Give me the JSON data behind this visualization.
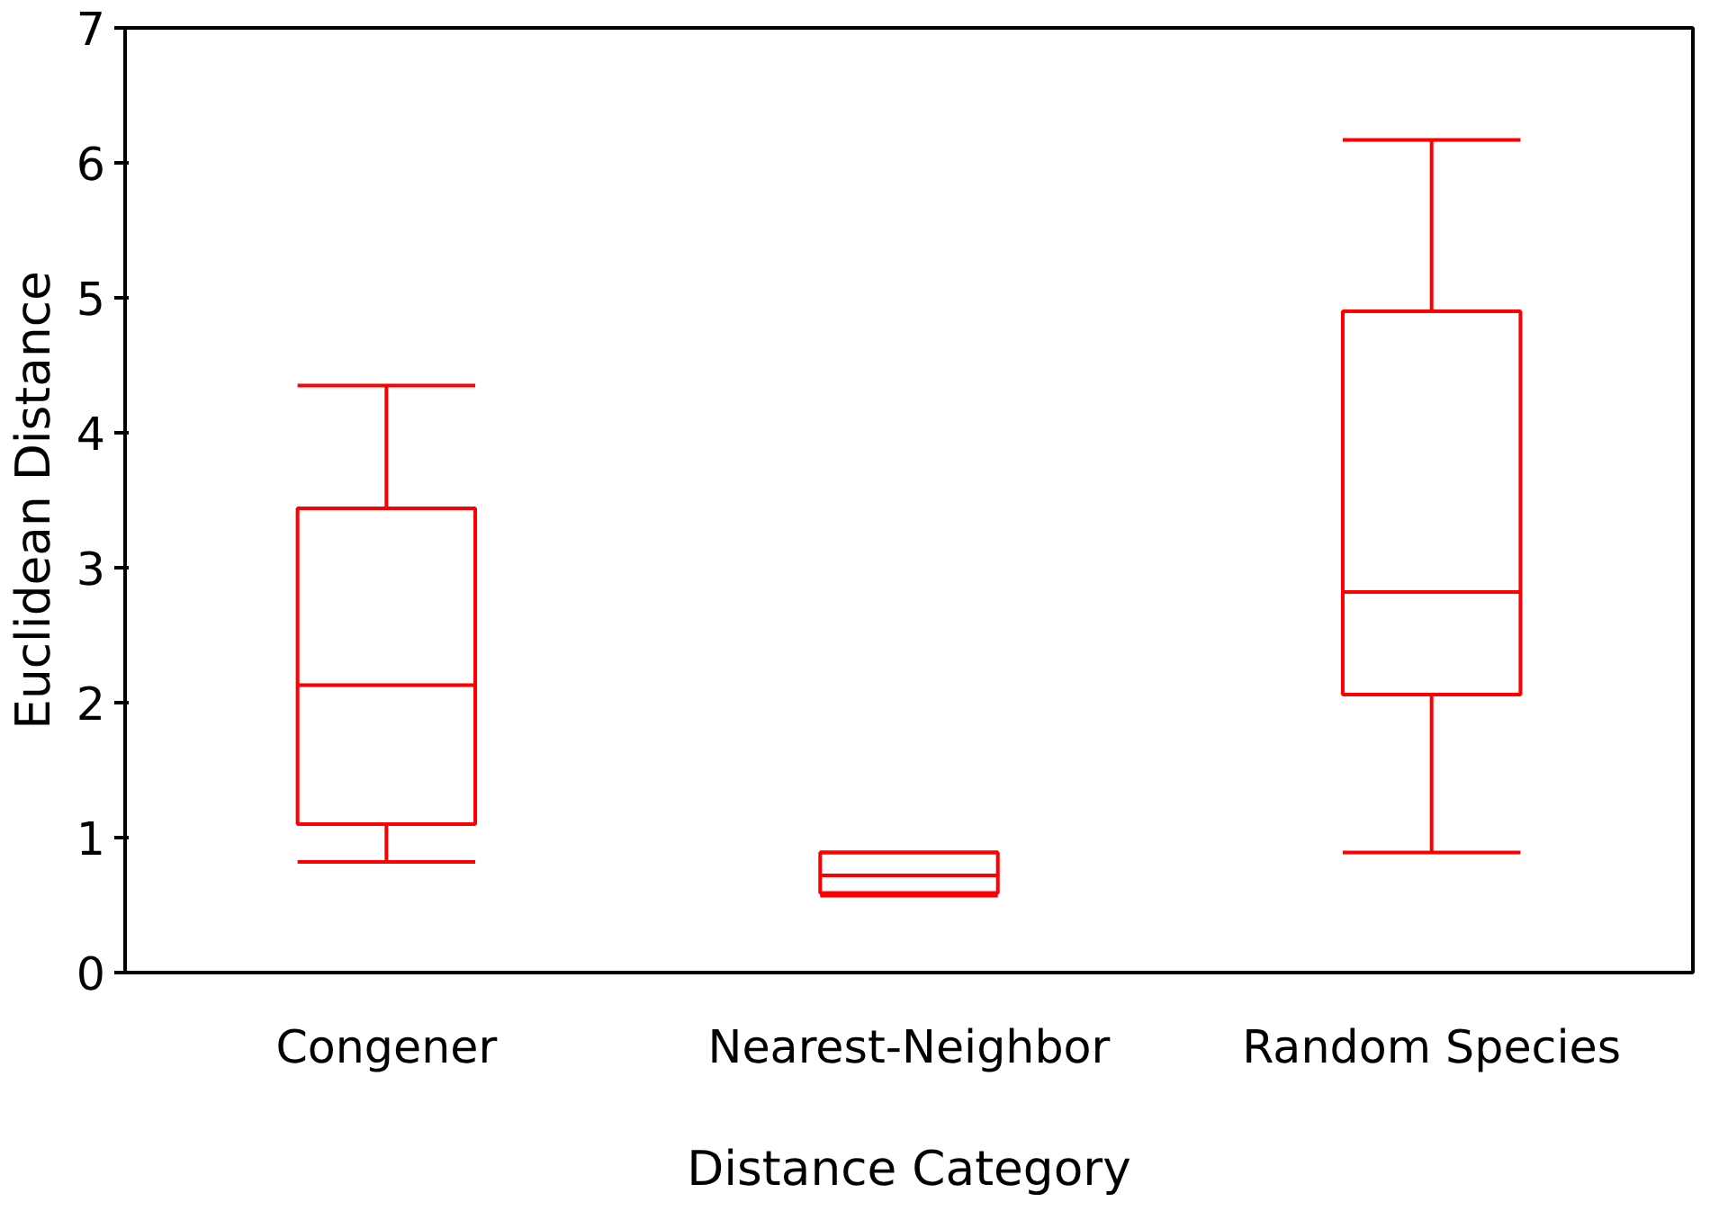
{
  "chart_data": {
    "type": "box",
    "xlabel": "Distance Category",
    "ylabel": "Euclidean Distance",
    "categories": [
      "Congener",
      "Nearest-Neighbor",
      "Random Species"
    ],
    "series": [
      {
        "color": "#ff0000",
        "boxes": [
          {
            "low": 0.82,
            "q1": 1.1,
            "median": 2.13,
            "q3": 3.44,
            "high": 4.35
          },
          {
            "low": 0.57,
            "q1": 0.59,
            "median": 0.72,
            "q3": 0.89,
            "high": 0.89
          },
          {
            "low": 0.89,
            "q1": 2.06,
            "median": 2.82,
            "q3": 4.9,
            "high": 6.17
          }
        ]
      }
    ],
    "ylim": [
      0,
      7
    ],
    "yticks": [
      0,
      1,
      2,
      3,
      4,
      5,
      6,
      7
    ],
    "grid": false
  }
}
